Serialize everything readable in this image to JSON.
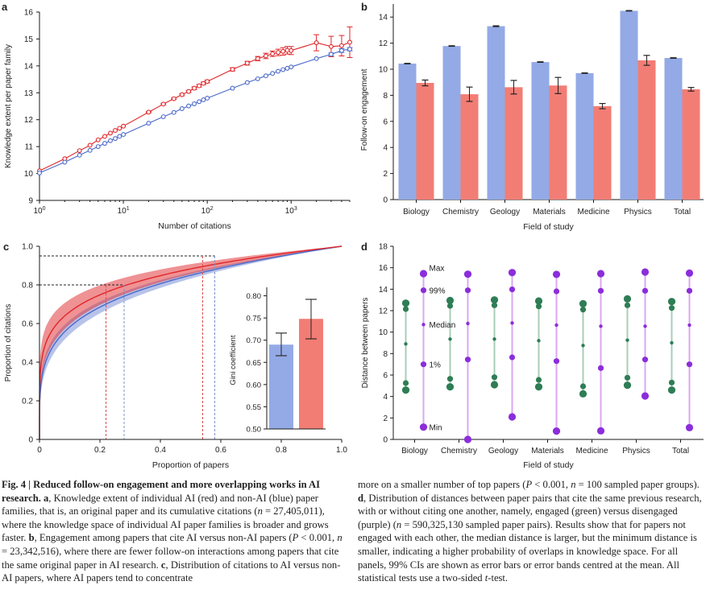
{
  "figure": {
    "panel_labels": [
      "a",
      "b",
      "c",
      "d"
    ]
  },
  "colors": {
    "ai_red": "#e0262a",
    "nonai_blue": "#4a68c9",
    "bar_blue": "#93aae6",
    "bar_red": "#f27d75",
    "engaged_green": "#2e7d55",
    "disengaged_purple": "#8b2ddb",
    "engaged_line": "#a8cdb8",
    "disengaged_line": "#d9a8f2"
  },
  "chart_data": [
    {
      "panel": "a",
      "type": "line",
      "xlabel": "Number of citations",
      "ylabel": "Knowledge extent per paper family",
      "xscale": "log",
      "xlim": [
        1,
        5000
      ],
      "ylim": [
        9,
        16
      ],
      "xticks": [
        1,
        10,
        100,
        1000
      ],
      "xtick_labels": [
        "10^0",
        "10^1",
        "10^2",
        "10^3"
      ],
      "yticks": [
        9,
        10,
        11,
        12,
        13,
        14,
        15,
        16
      ],
      "grid": false,
      "x": [
        1,
        2,
        3,
        4,
        5,
        6,
        7,
        8,
        9,
        10,
        20,
        30,
        40,
        50,
        60,
        70,
        80,
        90,
        100,
        200,
        300,
        400,
        500,
        600,
        700,
        800,
        900,
        1000,
        2000,
        3000,
        4000,
        5000
      ],
      "series": [
        {
          "name": "AI",
          "color": "red",
          "values": [
            10.1,
            10.55,
            10.85,
            11.05,
            11.25,
            11.38,
            11.5,
            11.6,
            11.68,
            11.76,
            12.28,
            12.58,
            12.78,
            12.93,
            13.05,
            13.17,
            13.26,
            13.35,
            13.42,
            13.87,
            14.1,
            14.27,
            14.37,
            14.45,
            14.5,
            14.54,
            14.58,
            14.57,
            14.86,
            14.72,
            14.75,
            14.88
          ],
          "ci": [
            0,
            0,
            0,
            0,
            0,
            0,
            0,
            0,
            0,
            0,
            0.02,
            0.03,
            0.03,
            0.04,
            0.04,
            0.05,
            0.05,
            0.05,
            0.05,
            0.06,
            0.07,
            0.08,
            0.1,
            0.1,
            0.12,
            0.14,
            0.14,
            0.15,
            0.3,
            0.38,
            0.38,
            0.57
          ]
        },
        {
          "name": "Non-AI",
          "color": "blue",
          "values": [
            10.02,
            10.42,
            10.68,
            10.86,
            11.0,
            11.12,
            11.22,
            11.3,
            11.38,
            11.45,
            11.87,
            12.11,
            12.27,
            12.41,
            12.51,
            12.59,
            12.67,
            12.74,
            12.8,
            13.17,
            13.38,
            13.52,
            13.63,
            13.72,
            13.8,
            13.86,
            13.91,
            13.96,
            14.27,
            14.43,
            14.57,
            14.62
          ],
          "ci": [
            0,
            0,
            0,
            0,
            0,
            0,
            0,
            0,
            0,
            0,
            0,
            0,
            0,
            0,
            0,
            0,
            0,
            0,
            0,
            0,
            0,
            0,
            0,
            0,
            0,
            0,
            0,
            0,
            0,
            0.05,
            0.07,
            0.06
          ]
        }
      ]
    },
    {
      "panel": "b",
      "type": "bar",
      "xlabel": "Field of study",
      "ylabel": "Follow-on engagement",
      "ylim": [
        0,
        15
      ],
      "yticks": [
        0,
        2,
        4,
        6,
        8,
        10,
        12,
        14
      ],
      "grid": false,
      "categories": [
        "Biology",
        "Chemistry",
        "Geology",
        "Materials",
        "Medicine",
        "Physics",
        "Total"
      ],
      "series": [
        {
          "name": "Non-AI",
          "color": "blue",
          "values": [
            10.43,
            11.78,
            13.3,
            10.55,
            9.7,
            14.48,
            10.86
          ],
          "ci": [
            0.02,
            0.02,
            0.03,
            0.02,
            0.02,
            0.02,
            0.02
          ]
        },
        {
          "name": "AI",
          "color": "red",
          "values": [
            8.95,
            8.08,
            8.62,
            8.75,
            7.17,
            10.68,
            8.46
          ],
          "ci": [
            0.22,
            0.55,
            0.52,
            0.62,
            0.2,
            0.38,
            0.14
          ]
        }
      ]
    },
    {
      "panel": "c",
      "type": "line",
      "xlabel": "Proportion of papers",
      "ylabel": "Proportion of citations",
      "xlim": [
        0,
        1
      ],
      "ylim": [
        0,
        1
      ],
      "xticks": [
        0,
        0.2,
        0.4,
        0.6,
        0.8,
        1.0
      ],
      "xtick_labels": [
        "0",
        "0.2",
        "0.4",
        "0.6",
        "0.8",
        "1.0"
      ],
      "yticks": [
        0,
        0.2,
        0.4,
        0.6,
        0.8,
        1.0
      ],
      "ytick_labels": [
        "0",
        "0.2",
        "0.4",
        "0.6",
        "0.8",
        "1.0"
      ],
      "grid": false,
      "series": [
        {
          "name": "AI",
          "color": "red",
          "curve_exponent": 0.18,
          "band_low_exponent": 0.225,
          "band_high_exponent": 0.14,
          "x80": 0.22,
          "x95": 0.54
        },
        {
          "name": "Non-AI",
          "color": "blue",
          "curve_exponent": 0.235,
          "band_low_exponent": 0.265,
          "band_high_exponent": 0.21,
          "x80": 0.28,
          "x95": 0.58
        }
      ],
      "reference_lines": {
        "y80": 0.8,
        "y95": 0.95
      },
      "inset": {
        "type": "bar",
        "ylabel": "Gini coefficient",
        "ylim": [
          0.5,
          0.81
        ],
        "yticks": [
          0.5,
          0.55,
          0.6,
          0.65,
          0.7,
          0.75,
          0.8
        ],
        "ytick_labels": [
          "0.50",
          "0.55",
          "0.60",
          "0.65",
          "0.70",
          "0.75",
          "0.80"
        ],
        "bars": [
          {
            "name": "Non-AI",
            "color": "blue",
            "value": 0.69,
            "ci": [
              0.665,
              0.716
            ]
          },
          {
            "name": "AI",
            "color": "red",
            "value": 0.748,
            "ci": [
              0.703,
              0.792
            ]
          }
        ]
      }
    },
    {
      "panel": "d",
      "type": "scatter",
      "xlabel": "Field of study",
      "ylabel": "Distance between papers",
      "ylim": [
        0,
        18
      ],
      "yticks": [
        0,
        2,
        4,
        6,
        8,
        10,
        12,
        14,
        16,
        18
      ],
      "grid": false,
      "categories": [
        "Biology",
        "Chemistry",
        "Geology",
        "Materials",
        "Medicine",
        "Physics",
        "Total"
      ],
      "stat_labels": [
        "Max",
        "99%",
        "Median",
        "1%",
        "Min"
      ],
      "series": [
        {
          "name": "Engaged",
          "color": "green",
          "max": [
            12.7,
            12.95,
            13.0,
            12.9,
            12.65,
            13.1,
            12.85
          ],
          "p99": [
            12.15,
            12.45,
            12.5,
            12.4,
            12.1,
            12.5,
            12.25
          ],
          "median": [
            8.9,
            9.35,
            9.35,
            9.2,
            8.75,
            9.25,
            9.0
          ],
          "p1": [
            5.25,
            5.65,
            5.8,
            5.55,
            4.95,
            5.75,
            5.3
          ],
          "min": [
            4.6,
            4.9,
            5.1,
            4.9,
            4.25,
            5.05,
            4.6
          ]
        },
        {
          "name": "Disengaged",
          "color": "purple",
          "max": [
            15.45,
            15.4,
            15.55,
            15.38,
            15.45,
            15.6,
            15.5
          ],
          "p99": [
            13.9,
            13.9,
            13.98,
            13.8,
            13.85,
            13.85,
            13.85
          ],
          "median": [
            10.7,
            10.8,
            10.85,
            10.65,
            10.55,
            10.55,
            10.65
          ],
          "p1": [
            7.0,
            7.45,
            7.65,
            7.3,
            6.65,
            7.45,
            7.0
          ],
          "min": [
            1.15,
            0.0,
            2.1,
            0.78,
            0.8,
            4.05,
            1.1
          ]
        }
      ]
    }
  ],
  "caption": {
    "left": [
      {
        "t": "Fig. 4 | Reduced follow-on engagement and more overlapping works in AI research. ",
        "s": "b"
      },
      {
        "t": "a",
        "s": "b"
      },
      {
        "t": ", Knowledge extent of individual AI (red) and non-AI (blue) paper families, that is, an original paper and its cumulative citations ("
      },
      {
        "t": "n",
        "s": "i"
      },
      {
        "t": " = 27,405,011), where the knowledge space of individual AI paper families is broader and grows faster. "
      },
      {
        "t": "b",
        "s": "b"
      },
      {
        "t": ", Engagement among papers that cite AI versus non-AI papers ("
      },
      {
        "t": "P",
        "s": "i"
      },
      {
        "t": " < 0.001, "
      },
      {
        "t": "n",
        "s": "i"
      },
      {
        "t": " = 23,342,516), where there are fewer follow-on interactions among papers that cite the same original paper in AI research. "
      },
      {
        "t": "c",
        "s": "b"
      },
      {
        "t": ", Distribution of citations to AI versus non-AI papers, where AI papers tend to concentrate"
      }
    ],
    "right": [
      {
        "t": "more on a smaller number of top papers ("
      },
      {
        "t": "P",
        "s": "i"
      },
      {
        "t": " < 0.001, "
      },
      {
        "t": "n",
        "s": "i"
      },
      {
        "t": " = 100 sampled paper groups). "
      },
      {
        "t": "d",
        "s": "b"
      },
      {
        "t": ", Distribution of distances between paper pairs that cite the same previous research, with or without citing one another, namely, engaged (green) versus disengaged (purple) ("
      },
      {
        "t": "n",
        "s": "i"
      },
      {
        "t": " = 590,325,130 sampled paper pairs). Results show that for papers not engaged with each other, the median distance is larger, but the minimum distance is smaller, indicating a higher probability of overlaps in knowledge space. For all panels, 99% CIs are shown as error bars or error bands centred at the mean. All statistical tests use a two-sided "
      },
      {
        "t": "t",
        "s": "i"
      },
      {
        "t": "-test."
      }
    ]
  }
}
